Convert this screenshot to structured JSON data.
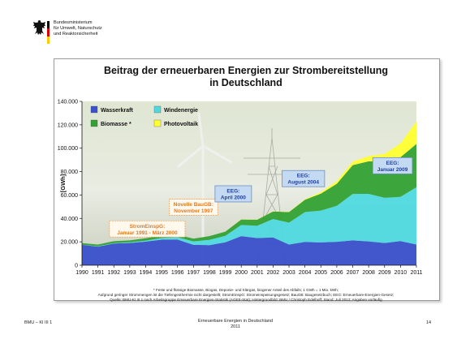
{
  "header": {
    "ministry_lines": [
      "Bundesministerium",
      "für Umwelt, Naturschutz",
      "und Reaktorsicherheit"
    ],
    "flag_colors": [
      "#000000",
      "#dd0000",
      "#ffcc00"
    ]
  },
  "chart_data": {
    "type": "area",
    "stacked": true,
    "title_lines": [
      "Beitrag der erneuerbaren Energien zur Strombereitstellung",
      "in Deutschland"
    ],
    "ylabel": "[GWh]",
    "ylim": [
      0,
      140000
    ],
    "yticks": [
      0,
      20000,
      40000,
      60000,
      80000,
      100000,
      120000,
      140000
    ],
    "ytick_labels": [
      "0",
      "20.000",
      "40.000",
      "60.000",
      "80.000",
      "100.000",
      "120.000",
      "140.000"
    ],
    "x": [
      1990,
      1991,
      1992,
      1993,
      1994,
      1995,
      1996,
      1997,
      1998,
      1999,
      2000,
      2001,
      2002,
      2003,
      2004,
      2005,
      2006,
      2007,
      2008,
      2009,
      2010,
      2011
    ],
    "series": [
      {
        "name": "Wasserkraft",
        "color": "#3b50cc",
        "values": [
          17400,
          15900,
          18600,
          19000,
          20200,
          21800,
          21900,
          17400,
          17200,
          19600,
          24900,
          23200,
          23700,
          17700,
          19900,
          19500,
          20000,
          21200,
          20400,
          19000,
          20600,
          17700
        ]
      },
      {
        "name": "Windenergie",
        "color": "#4fd9df",
        "values": [
          100,
          300,
          300,
          600,
          900,
          1500,
          2000,
          3000,
          4500,
          5500,
          9500,
          10500,
          15800,
          18700,
          25500,
          27200,
          30700,
          39700,
          40600,
          38600,
          37800,
          48900
        ]
      },
      {
        "name": "Biomasse *",
        "color": "#33a133",
        "values": [
          1400,
          1500,
          1600,
          1600,
          1900,
          2000,
          2100,
          2300,
          3200,
          3600,
          4700,
          5200,
          6400,
          9000,
          10500,
          14400,
          18900,
          24600,
          27800,
          30900,
          33900,
          37000
        ]
      },
      {
        "name": "Photovoltaik",
        "color": "#ffff33",
        "values": [
          0,
          0,
          0,
          0,
          0,
          0,
          0,
          0,
          0,
          0,
          100,
          200,
          200,
          300,
          600,
          1300,
          2200,
          3100,
          4400,
          6600,
          11700,
          19300
        ]
      }
    ],
    "legend_position": "top-left",
    "grid": false,
    "annotations": [
      {
        "lines": [
          "StromEinspG:",
          "Januar 1991 - März 2000"
        ],
        "style": "orange",
        "year": 1994.1,
        "value": 31000
      },
      {
        "lines": [
          "Novelle BauGB:",
          "November 1997"
        ],
        "style": "orange",
        "year": 1997.0,
        "value": 49500
      },
      {
        "lines": [
          "EEG:",
          "April 2000"
        ],
        "style": "blue",
        "year": 1999.5,
        "value": 61000
      },
      {
        "lines": [
          "EEG:",
          "August  2004"
        ],
        "style": "blue",
        "year": 2003.9,
        "value": 74000
      },
      {
        "lines": [
          "EEG:",
          "Januar 2009"
        ],
        "style": "blue",
        "year": 2009.5,
        "value": 85000
      }
    ]
  },
  "notes": [
    "* Feste und flüssige Biomasse, Biogas, Deponie- und Klärgas, biogener Anteil des Abfalls; 1 GWh = 1 Mio. kWh;",
    "Aufgrund geringer Strommengen ist die Tiefengeothermie nicht dargestellt; StromEinspG: Stromeinspeisungsgesetz; BauGB: Baugesetzbuch; EEG: Erneuerbare-Energien-Gesetz;",
    "Quelle: BMU-KI III 1 nach Arbeitsgruppe Erneuerbare Energien-Statistik (AGEE-Stat); Hintergrundbild: BMU / Christoph Edelhoff; Stand: Juli 2012; Angaben vorläufig"
  ],
  "footer": {
    "left": "BMU – KI III 1",
    "center_lines": [
      "Erneuerbare Energien in Deutschland",
      "2011"
    ],
    "page": "14"
  }
}
